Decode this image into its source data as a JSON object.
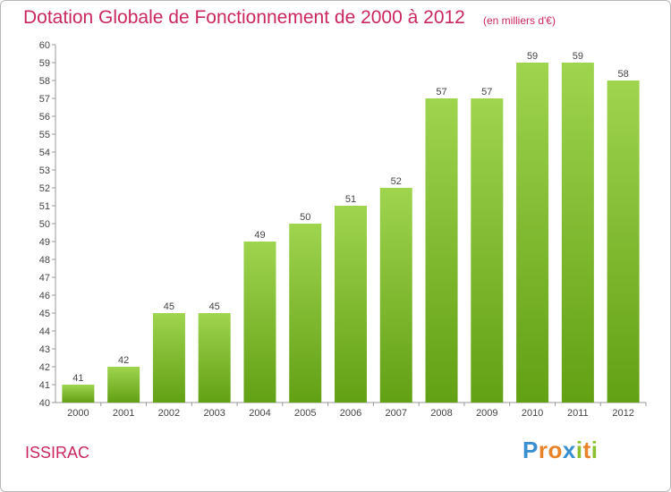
{
  "header": {
    "title": "Dotation Globale de Fonctionnement de 2000 à 2012",
    "subtitle": "(en milliers d'€)"
  },
  "commune": "ISSIRAC",
  "logo": {
    "text": "Proxiti",
    "colors": [
      "#3a8fd0",
      "#e8832a",
      "#e8832a",
      "#3a8fd0",
      "#8cbf2e",
      "#e8832a",
      "#8cbf2e"
    ]
  },
  "chart_data": {
    "type": "bar",
    "title": "Dotation Globale de Fonctionnement de 2000 à 2012",
    "subtitle": "(en milliers d'€)",
    "xlabel": "",
    "ylabel": "",
    "categories": [
      "2000",
      "2001",
      "2002",
      "2003",
      "2004",
      "2005",
      "2006",
      "2007",
      "2008",
      "2009",
      "2010",
      "2011",
      "2012"
    ],
    "values": [
      41,
      42,
      45,
      45,
      49,
      50,
      51,
      52,
      57,
      57,
      59,
      59,
      58
    ],
    "ylim": [
      40,
      60
    ],
    "yticks": [
      40,
      41,
      42,
      43,
      44,
      45,
      46,
      47,
      48,
      49,
      50,
      51,
      52,
      53,
      54,
      55,
      56,
      57,
      58,
      59,
      60
    ],
    "grid": false,
    "legend": "none",
    "colors": {
      "bar_top": "#9fd44f",
      "bar_bottom": "#62a014",
      "axis": "#999999",
      "title": "#c9275e"
    }
  }
}
